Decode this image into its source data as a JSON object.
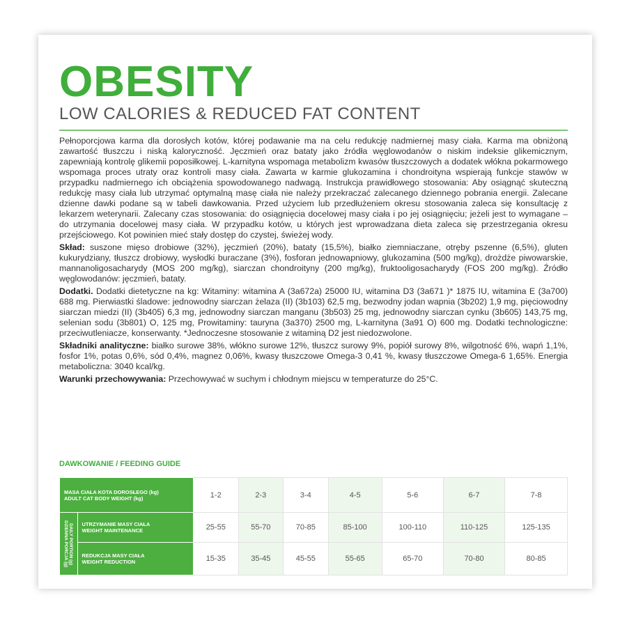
{
  "header": {
    "title": "OBESITY",
    "subtitle": "LOW CALORIES & REDUCED FAT CONTENT"
  },
  "intro": "Pełnoporcjowa karma dla dorosłych kotów, której podawanie ma na celu redukcję nadmiernej masy ciała. Karma ma obniżoną zawartość tłuszczu i niską kaloryczność. Jęczmień oraz bataty jako źródła węglowodanów o niskim indeksie glikemicznym, zapewniają kontrolę glikemii poposiłkowej. L-karnityna wspomaga metabolizm kwasów tłuszczowych a dodatek włókna pokarmowego wspomaga proces utraty oraz kontroli masy ciała. Zawarta w karmie glukozamina i chondroityna wspierają funkcje stawów w przypadku nadmiernego ich obciążenia spowodowanego nadwagą. Instrukcja prawidłowego stosowania: Aby osiągnąć skuteczną redukcję masy ciała lub utrzymać optymalną masę ciała nie należy przekraczać zalecanego dziennego pobrania energii. Zalecane dzienne dawki podane są w tabeli dawkowania. Przed użyciem lub przedłużeniem okresu stosowania zaleca się konsultację z lekarzem weterynarii. Zalecany czas stosowania: do osiągnięcia docelowej masy ciała i po jej osiągnięciu; jeżeli jest to wymagane – do utrzymania docelowej masy ciała. W przypadku kotów, u których jest wprowadzana dieta zaleca się przestrzegania okresu przejściowego. Kot powinien mieć stały dostęp do czystej, świeżej wody.",
  "sections": [
    {
      "label": "Skład:",
      "text": "suszone mięso drobiowe (32%), jęczmień (20%), bataty (15,5%), białko ziemniaczane, otręby pszenne (6,5%), gluten kukurydziany, tłuszcz drobiowy, wysłodki buraczane (3%), fosforan jednowapniowy, glukozamina (500 mg/kg), drożdże piwowarskie, mannanoligosacharydy (MOS 200 mg/kg), siarczan chondroityny (200 mg/kg), fruktooligosacharydy (FOS 200 mg/kg). Źródło węglowodanów: jęczmień, bataty."
    },
    {
      "label": "Dodatki.",
      "text": "Dodatki dietetyczne na kg: Witaminy: witamina A (3a672a) 25000 IU, witamina D3 (3a671 )* 1875 IU, witamina E (3a700) 688 mg. Pierwiastki śladowe: jednowodny siarczan żelaza (II) (3b103) 62,5 mg, bezwodny jodan wapnia (3b202) 1,9 mg, pięciowodny siarczan miedzi (II) (3b405) 6,3 mg, jednowodny siarczan manganu (3b503) 25 mg, jednowodny siarczan cynku (3b605) 143,75 mg, selenian sodu (3b801) O, 125 mg, Prowitaminy: tauryna (3a370) 2500 mg, L-karnityna (3a91 O) 600 mg. Dodatki technologiczne: przeciwutleniacze, konserwanty. *Jednoczesne stosowanie z witaminą D2 jest niedozwolone."
    },
    {
      "label": "Składniki analityczne:",
      "text": "białko surowe 38%, włókno surowe 12%, tłuszcz surowy 9%, popiół surowy 8%, wilgotność 6%, wapń 1,1%, fosfor 1%, potas 0,6%, sód 0,4%, magnez 0,06%, kwasy tłuszczowe Omega-3 0,41 %, kwasy tłuszczowe Omega-6 1,65%. Energia metaboliczna: 3040 kcal/kg."
    },
    {
      "label": "Warunki przechowywania:",
      "text": "Przechowywać w suchym i chłodnym miejscu w temperaturze do 25°C."
    }
  ],
  "table": {
    "title": "DAWKOWANIE / FEEDING GUIDE",
    "group_label": [
      "DZIENNA PORCJA (g)",
      "DAILY PORTION (g)"
    ],
    "rows": [
      {
        "label": [
          "MASA CIAŁA KOTA DOROSŁEGO (kg)",
          "ADULT CAT BODY WEIGHT (kg)"
        ],
        "cells": [
          "1-2",
          "2-3",
          "3-4",
          "4-5",
          "5-6",
          "6-7",
          "7-8"
        ]
      },
      {
        "label": [
          "UTRZYMANIE MASY CIAŁA",
          "WEIGHT MAINTENANCE"
        ],
        "cells": [
          "25-55",
          "55-70",
          "70-85",
          "85-100",
          "100-110",
          "110-125",
          "125-135"
        ]
      },
      {
        "label": [
          "REDUKCJA MASY CIAŁA",
          "WEIGHT REDUCTION"
        ],
        "cells": [
          "15-35",
          "35-45",
          "45-55",
          "55-65",
          "65-70",
          "70-80",
          "80-85"
        ]
      }
    ]
  }
}
